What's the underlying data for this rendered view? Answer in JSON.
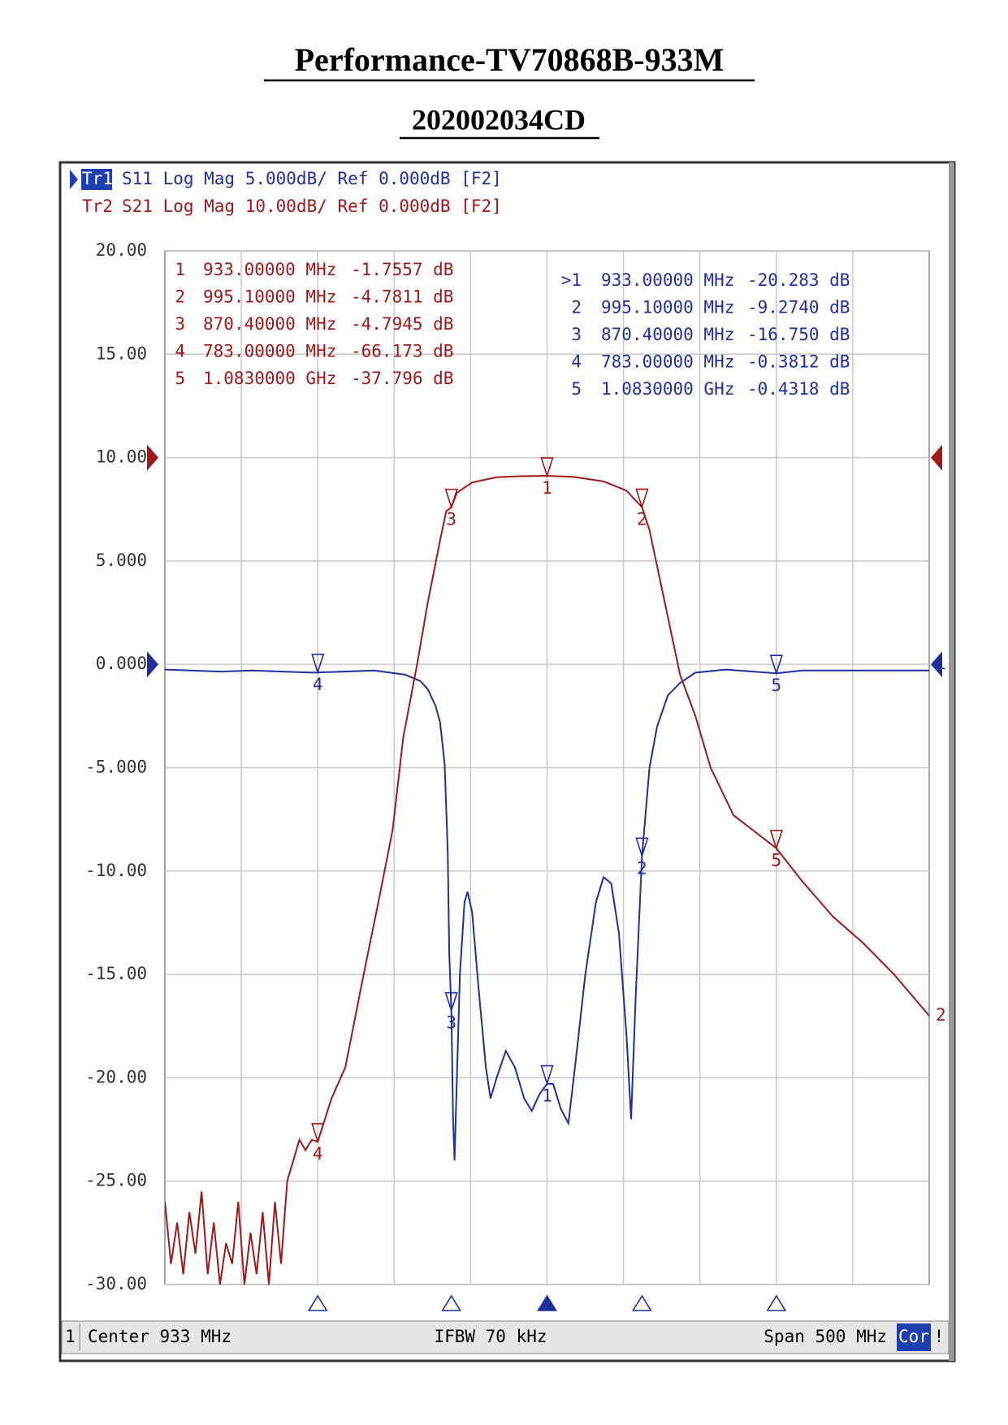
{
  "title": "Performance-TV70868B-933M",
  "subtitle": "202002034CD",
  "chart_data": {
    "type": "line",
    "trace_headers": [
      {
        "id": "Tr1",
        "text": "S11 Log Mag 5.000dB/ Ref 0.000dB [F2]",
        "color": "#1f2f9c"
      },
      {
        "id": "Tr2",
        "text": "S21 Log Mag 10.00dB/ Ref 0.000dB [F2]",
        "color": "#a01818"
      }
    ],
    "xlim": [
      683,
      1183
    ],
    "ylim": [
      -30,
      20
    ],
    "y2lim": [
      -80,
      20
    ],
    "grid": true,
    "yticks": [
      {
        "value": 20,
        "label": "20.00"
      },
      {
        "value": 15,
        "label": "15.00"
      },
      {
        "value": 10,
        "label": "10.00"
      },
      {
        "value": 5,
        "label": "5.000"
      },
      {
        "value": 0,
        "label": "0.000"
      },
      {
        "value": -5,
        "label": "-5.000"
      },
      {
        "value": -10,
        "label": "-10.00"
      },
      {
        "value": -15,
        "label": "-15.00"
      },
      {
        "value": -20,
        "label": "-20.00"
      },
      {
        "value": -25,
        "label": "-25.00"
      },
      {
        "value": -30,
        "label": "-30.00"
      }
    ],
    "series": [
      {
        "name": "S11",
        "trace_id": "1",
        "color": "#1f2f9c",
        "ref_level": 0,
        "x": [
          683,
          700,
          720,
          740,
          760,
          780,
          800,
          820,
          840,
          850,
          855,
          860,
          863,
          866,
          868,
          869,
          870.4,
          871.5,
          872.5,
          874,
          876,
          879,
          881,
          884,
          888,
          893,
          896,
          900,
          906,
          912,
          918,
          923,
          928,
          933,
          937,
          942,
          947,
          952,
          958,
          965,
          970,
          975,
          980,
          985,
          988,
          991,
          995.1,
          1000,
          1005,
          1012,
          1020,
          1030,
          1050,
          1083,
          1100,
          1140,
          1183
        ],
        "values": [
          -0.25,
          -0.3,
          -0.35,
          -0.3,
          -0.35,
          -0.4,
          -0.35,
          -0.3,
          -0.5,
          -0.8,
          -1.2,
          -2,
          -2.8,
          -4.8,
          -9,
          -14,
          -16.75,
          -22,
          -24,
          -20,
          -15,
          -11.5,
          -11,
          -12,
          -15.5,
          -19.5,
          -21,
          -20,
          -18.7,
          -19.5,
          -21,
          -21.6,
          -20.8,
          -20.283,
          -20.3,
          -21.5,
          -22.2,
          -19,
          -15,
          -11.5,
          -10.3,
          -10.6,
          -13,
          -18,
          -22,
          -16,
          -9.274,
          -5,
          -3,
          -1.5,
          -0.9,
          -0.4,
          -0.25,
          -0.4318,
          -0.3,
          -0.3,
          -0.3
        ],
        "markers": [
          {
            "id": "1",
            "readout_id": ">1",
            "freq": 933,
            "freq_label": "933.00000 MHz",
            "value": -20.283,
            "value_label": "-20.283 dB"
          },
          {
            "id": "2",
            "freq": 995.1,
            "freq_label": "995.10000 MHz",
            "value": -9.274,
            "value_label": "-9.2740 dB"
          },
          {
            "id": "3",
            "freq": 870.4,
            "freq_label": "870.40000 MHz",
            "value": -16.75,
            "value_label": "-16.750 dB"
          },
          {
            "id": "4",
            "freq": 783,
            "freq_label": "783.00000 MHz",
            "value": -0.3812,
            "value_label": "-0.3812 dB"
          },
          {
            "id": "5",
            "freq": 1083,
            "freq_label": "1.0830000 GHz",
            "value": -0.4318,
            "value_label": "-0.4318 dB"
          }
        ]
      },
      {
        "name": "S21",
        "trace_id": "2",
        "axis": "y2",
        "color": "#a01818",
        "ref_level": 0,
        "x": [
          683,
          687,
          691,
          695,
          699,
          703,
          707,
          711,
          715,
          719,
          723,
          727,
          731,
          735,
          739,
          743,
          747,
          751,
          755,
          759,
          763,
          767,
          771,
          775,
          779,
          783,
          792,
          801,
          813,
          824,
          832,
          839,
          848,
          855,
          863,
          867,
          870.4,
          874,
          884,
          900,
          915,
          933,
          950,
          970,
          985,
          990,
          995.1,
          1000,
          1010,
          1020,
          1030,
          1040,
          1055,
          1083,
          1100,
          1120,
          1140,
          1160,
          1183
        ],
        "values": [
          -72,
          -78,
          -74,
          -79,
          -73,
          -77,
          -71,
          -79,
          -74,
          -80,
          -76,
          -78,
          -72,
          -80,
          -75,
          -79,
          -73,
          -80,
          -72,
          -78,
          -70,
          -68,
          -66,
          -67,
          -66,
          -66.173,
          -62,
          -59,
          -50,
          -42,
          -36,
          -27,
          -20,
          -14,
          -8,
          -5.2,
          -4.7945,
          -3.4,
          -2.4,
          -1.9,
          -1.8,
          -1.7557,
          -1.85,
          -2.3,
          -3.2,
          -4.0,
          -4.7811,
          -7,
          -14,
          -21,
          -25,
          -30,
          -34.6,
          -37.796,
          -41,
          -44.4,
          -47,
          -50,
          -54
        ],
        "markers": [
          {
            "id": "1",
            "freq": 933,
            "freq_label": "933.00000 MHz",
            "value": -1.7557,
            "value_label": "-1.7557 dB"
          },
          {
            "id": "2",
            "freq": 995.1,
            "freq_label": "995.10000 MHz",
            "value": -4.7811,
            "value_label": "-4.7811 dB"
          },
          {
            "id": "3",
            "freq": 870.4,
            "freq_label": "870.40000 MHz",
            "value": -4.7945,
            "value_label": "-4.7945 dB"
          },
          {
            "id": "4",
            "freq": 783,
            "freq_label": "783.00000 MHz",
            "value": -66.173,
            "value_label": "-66.173 dB"
          },
          {
            "id": "5",
            "freq": 1083,
            "freq_label": "1.0830000 GHz",
            "value": -37.796,
            "value_label": "-37.796 dB"
          }
        ]
      }
    ],
    "status": {
      "channel": "1",
      "center": "Center 933 MHz",
      "ifbw": "IFBW 70 kHz",
      "span": "Span 500 MHz",
      "cor": "Cor",
      "warn": "!"
    }
  }
}
